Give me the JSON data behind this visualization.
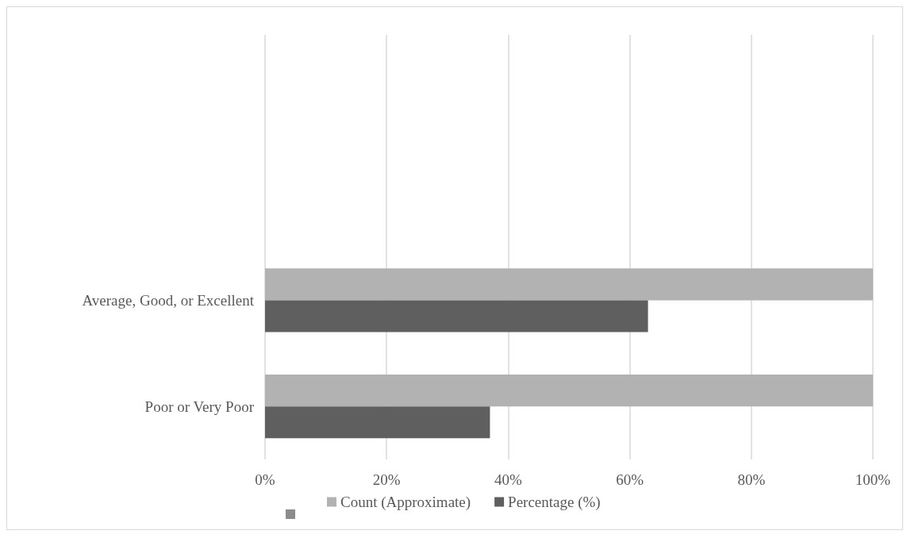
{
  "chart_data": {
    "type": "bar",
    "orientation": "horizontal",
    "categories": [
      null,
      null,
      "Average, Good, or Excellent",
      "Poor or Very Poor"
    ],
    "series": [
      {
        "name": "Count (Approximate)",
        "color": "#b2b2b2",
        "values": [
          null,
          null,
          100,
          100
        ]
      },
      {
        "name": "Percentage (%)",
        "color": "#5f5f5f",
        "values": [
          null,
          null,
          63,
          37
        ]
      }
    ],
    "xlim": [
      0,
      100
    ],
    "xticks": [
      {
        "value": 0,
        "label": "0%"
      },
      {
        "value": 20,
        "label": "20%"
      },
      {
        "value": 40,
        "label": "40%"
      },
      {
        "value": 60,
        "label": "60%"
      },
      {
        "value": 80,
        "label": "80%"
      },
      {
        "value": 100,
        "label": "100%"
      }
    ],
    "grid": "x",
    "legend": "bottom"
  }
}
